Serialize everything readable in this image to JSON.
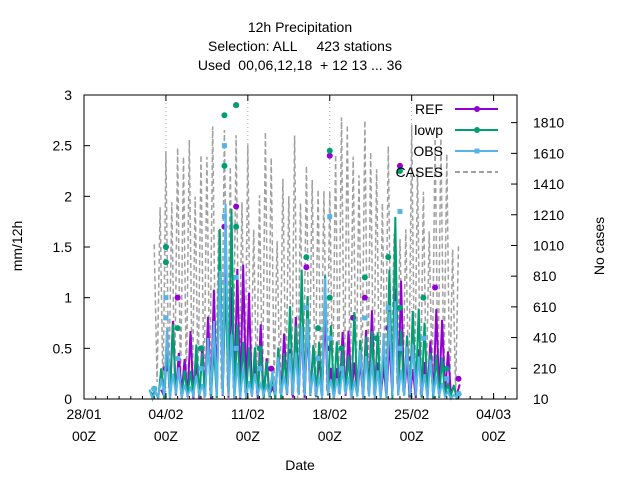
{
  "chart_data": {
    "type": "line",
    "title_lines": [
      "12h Precipitation",
      "Selection: ALL     423 stations",
      "Used  00,06,12,18  + 12 13 ... 36"
    ],
    "xlabel": "Date",
    "ylabel": "mm/12h",
    "y2label": "No cases",
    "ylim": [
      0,
      3
    ],
    "y2lim": [
      10,
      1990
    ],
    "xlim": [
      "2025-01-28",
      "2025-03-06"
    ],
    "x_ticks": [
      {
        "date": "2025-01-28",
        "l1": "28/01",
        "l2": "00Z"
      },
      {
        "date": "2025-02-04",
        "l1": "04/02",
        "l2": "00Z"
      },
      {
        "date": "2025-02-11",
        "l1": "11/02",
        "l2": "00Z"
      },
      {
        "date": "2025-02-18",
        "l1": "18/02",
        "l2": "00Z"
      },
      {
        "date": "2025-02-25",
        "l1": "25/02",
        "l2": "00Z"
      },
      {
        "date": "2025-03-04",
        "l1": "04/03",
        "l2": "00Z"
      }
    ],
    "y_ticks": [
      "0",
      "0.5",
      "1",
      "1.5",
      "2",
      "2.5",
      "3"
    ],
    "y2_ticks": [
      "10",
      "210",
      "410",
      "610",
      "810",
      "1010",
      "1210",
      "1410",
      "1610",
      "1810"
    ],
    "gridlines": "vertical-dotted",
    "legend_position": "top-right",
    "series": [
      {
        "name": "REF",
        "color": "#9400d3",
        "marker": "circle",
        "axis": "y1",
        "x": [
          "2025-02-04",
          "2025-02-04",
          "2025-02-05",
          "2025-02-07",
          "2025-02-09",
          "2025-02-10",
          "2025-02-10",
          "2025-02-13",
          "2025-02-16",
          "2025-02-17",
          "2025-02-18",
          "2025-02-18",
          "2025-02-20",
          "2025-02-21",
          "2025-02-23",
          "2025-02-24",
          "2025-02-25",
          "2025-02-27",
          "2025-03-01"
        ],
        "y": [
          0.3,
          1.5,
          1.0,
          0.5,
          1.7,
          2.9,
          1.9,
          0.3,
          1.3,
          0.4,
          2.4,
          0.5,
          0.8,
          1.0,
          0.7,
          2.3,
          0.4,
          1.1,
          0.2
        ]
      },
      {
        "name": "lowp",
        "color": "#009e73",
        "marker": "circle",
        "axis": "y1",
        "x": [
          "2025-02-03",
          "2025-02-04",
          "2025-02-04",
          "2025-02-05",
          "2025-02-07",
          "2025-02-09",
          "2025-02-09",
          "2025-02-10",
          "2025-02-10",
          "2025-02-12",
          "2025-02-16",
          "2025-02-17",
          "2025-02-18",
          "2025-02-18",
          "2025-02-19",
          "2025-02-21",
          "2025-02-22",
          "2025-02-23",
          "2025-02-24",
          "2025-02-24",
          "2025-02-26",
          "2025-02-28",
          "2025-03-01"
        ],
        "y": [
          0.1,
          1.35,
          1.5,
          0.7,
          0.5,
          2.3,
          2.8,
          2.9,
          1.7,
          0.5,
          1.4,
          0.7,
          2.45,
          1.0,
          0.5,
          1.2,
          0.6,
          1.4,
          2.25,
          0.9,
          1.0,
          0.3,
          0.05
        ]
      },
      {
        "name": "OBS",
        "color": "#56b4e9",
        "marker": "square",
        "axis": "y1",
        "x": [
          "2025-02-03",
          "2025-02-04",
          "2025-02-04",
          "2025-02-05",
          "2025-02-07",
          "2025-02-09",
          "2025-02-09",
          "2025-02-10",
          "2025-02-10",
          "2025-02-12",
          "2025-02-16",
          "2025-02-17",
          "2025-02-18",
          "2025-02-18",
          "2025-02-19",
          "2025-02-21",
          "2025-02-23",
          "2025-02-24",
          "2025-02-24",
          "2025-02-26",
          "2025-02-28",
          "2025-03-01"
        ],
        "y": [
          0.1,
          1.0,
          0.8,
          0.4,
          0.3,
          1.8,
          2.5,
          1.2,
          0.5,
          0.3,
          0.9,
          0.4,
          1.8,
          0.6,
          0.3,
          0.8,
          0.9,
          1.85,
          0.5,
          0.6,
          0.2,
          0.05
        ]
      },
      {
        "name": "CASES",
        "color": "#a0a0a0",
        "marker": "none",
        "dash": "dashed",
        "axis": "y2",
        "x": [
          "2025-02-03",
          "2025-02-04",
          "2025-02-06",
          "2025-02-08",
          "2025-02-10",
          "2025-02-12",
          "2025-02-14",
          "2025-02-16",
          "2025-02-18",
          "2025-02-20",
          "2025-02-22",
          "2025-02-24",
          "2025-02-26",
          "2025-02-28",
          "2025-03-01"
        ],
        "y": [
          1850,
          1850,
          1850,
          1850,
          1800,
          1800,
          1800,
          1800,
          1950,
          1900,
          1850,
          1800,
          1800,
          1800,
          1750
        ]
      }
    ]
  }
}
